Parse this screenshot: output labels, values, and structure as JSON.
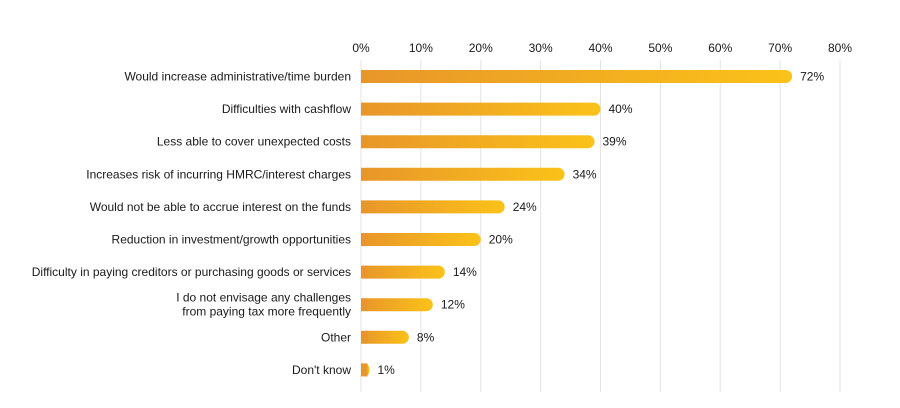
{
  "chart_data": {
    "type": "bar",
    "orientation": "horizontal",
    "title": "",
    "xlabel": "",
    "ylabel": "",
    "xlim": [
      0,
      80
    ],
    "x_ticks": [
      "0%",
      "10%",
      "20%",
      "30%",
      "40%",
      "50%",
      "60%",
      "70%",
      "80%"
    ],
    "x_tick_values": [
      0,
      10,
      20,
      30,
      40,
      50,
      60,
      70,
      80
    ],
    "x_axis_position": "top",
    "grid": true,
    "categories": [
      [
        "Would increase administrative/time burden"
      ],
      [
        "Difficulties with cashflow"
      ],
      [
        "Less able to cover unexpected costs"
      ],
      [
        "Increases risk of incurring HMRC/interest charges"
      ],
      [
        "Would not be able to accrue interest on the funds"
      ],
      [
        "Reduction in investment/growth opportunities"
      ],
      [
        "Difficulty in paying creditors or purchasing goods or services"
      ],
      [
        "I do not envisage any challenges",
        "from paying tax more frequently"
      ],
      [
        "Other"
      ],
      [
        "Don't know"
      ]
    ],
    "values": [
      72,
      40,
      39,
      34,
      24,
      20,
      14,
      12,
      8,
      1
    ],
    "value_labels": [
      "72%",
      "40%",
      "39%",
      "34%",
      "24%",
      "20%",
      "14%",
      "12%",
      "8%",
      "1%"
    ],
    "colors": {
      "bar_start": "#E8962A",
      "bar_end": "#FBC219",
      "grid": "#E3E3E3"
    }
  }
}
